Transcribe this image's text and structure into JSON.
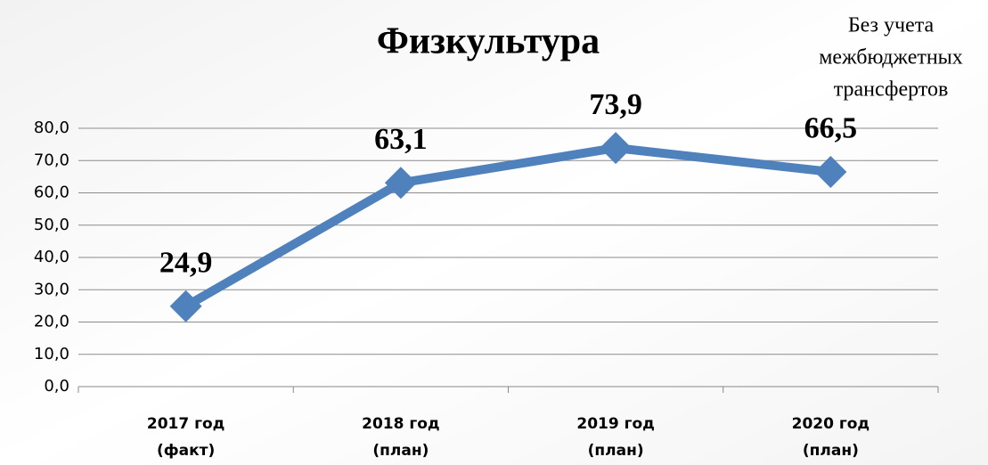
{
  "chart_data": {
    "type": "line",
    "title": "Физкультура",
    "annotation": [
      "Без учета",
      "межбюджетных",
      "трансфертов"
    ],
    "categories": [
      "2017 год (факт)",
      "2018 год (план)",
      "2019 год (план)",
      "2020 год (план)"
    ],
    "values": [
      24.9,
      63.1,
      73.9,
      66.5
    ],
    "value_labels": [
      "24,9",
      "63,1",
      "73,9",
      "66,5"
    ],
    "color": "#4f81bd",
    "ylim": [
      0,
      80
    ],
    "yticks": [
      {
        "value": 0,
        "label": "0,0"
      },
      {
        "value": 10,
        "label": "10,0"
      },
      {
        "value": 20,
        "label": "20,0"
      },
      {
        "value": 30,
        "label": "30,0"
      },
      {
        "value": 40,
        "label": "40,0"
      },
      {
        "value": 50,
        "label": "50,0"
      },
      {
        "value": 60,
        "label": "60,0"
      },
      {
        "value": 70,
        "label": "70,0"
      },
      {
        "value": 80,
        "label": "80,0"
      }
    ],
    "grid": true
  }
}
